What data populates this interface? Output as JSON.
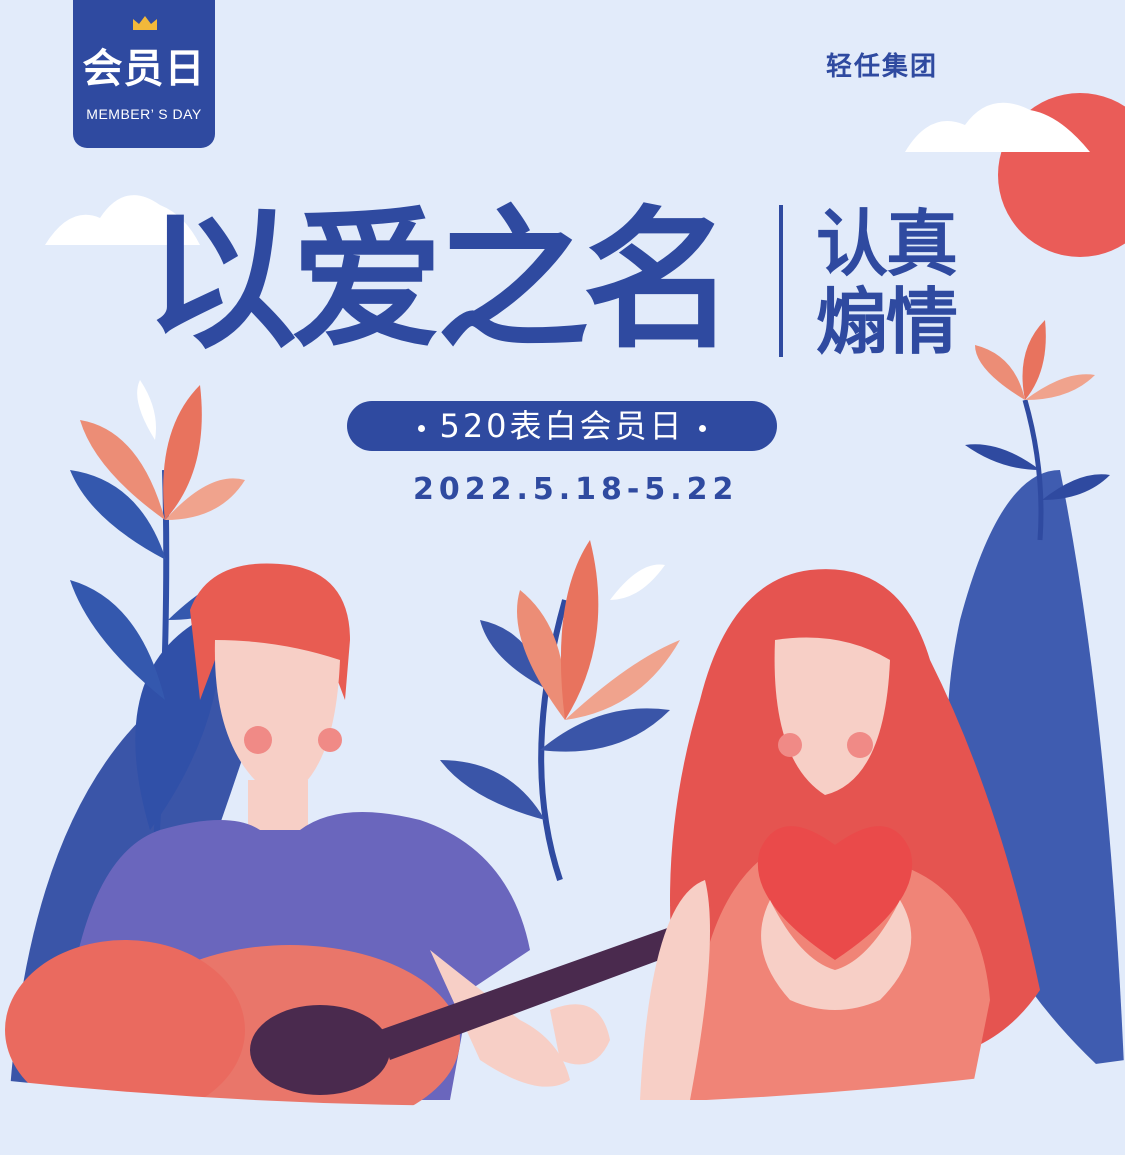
{
  "badge": {
    "title": "会员日",
    "subtitle": "MEMBER’ S DAY",
    "icon": "crown-icon"
  },
  "brand": {
    "name": "轻任集团"
  },
  "headline": {
    "main": "以爱之名",
    "side_line1": "认真",
    "side_line2": "煽情"
  },
  "event": {
    "label": "520表白会员日",
    "date": "2022.5.18-5.22"
  },
  "colors": {
    "background": "#e2ebfa",
    "primary_blue": "#2f4aa0",
    "coral": "#e8574e",
    "peach": "#f2a48e",
    "shirt_purple": "#6a66bd"
  }
}
